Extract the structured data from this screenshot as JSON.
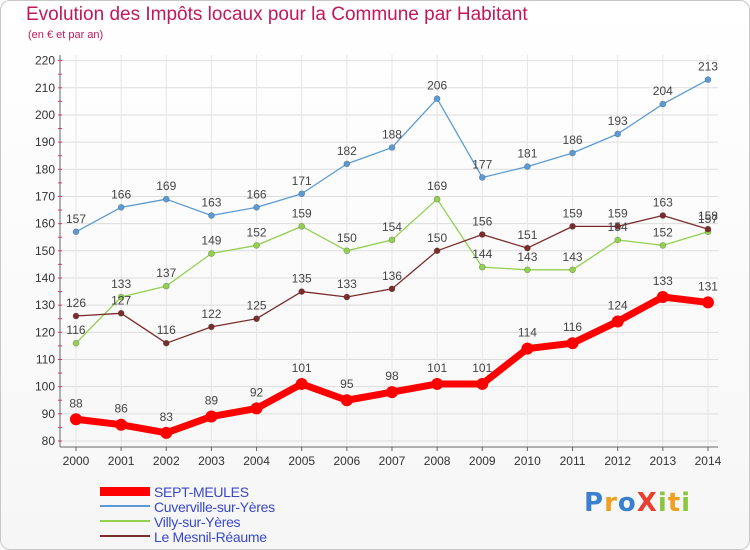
{
  "header": {
    "title": "Evolution des Impôts locaux pour la Commune par Habitant",
    "subtitle": "(en € et par an)"
  },
  "logo": {
    "text": "ProXiti",
    "letters": [
      {
        "ch": "P",
        "color": "#3b7fd0"
      },
      {
        "ch": "r",
        "color": "#f0a020"
      },
      {
        "ch": "o",
        "color": "#3b7fd0"
      },
      {
        "ch": "X",
        "color": "#e84030"
      },
      {
        "ch": "i",
        "color": "#8cc63f"
      },
      {
        "ch": "t",
        "color": "#f0a020"
      },
      {
        "ch": "i",
        "color": "#8cc63f"
      }
    ]
  },
  "chart_data": {
    "type": "line",
    "title": "Evolution des Impôts locaux pour la Commune par Habitant",
    "subtitle": "(en € et par an)",
    "xlabel": "",
    "ylabel": "",
    "x": [
      "2000",
      "2001",
      "2002",
      "2003",
      "2004",
      "2005",
      "2006",
      "2007",
      "2008",
      "2009",
      "2010",
      "2011",
      "2012",
      "2013",
      "2014"
    ],
    "ylim": [
      80,
      220
    ],
    "yticks": [
      80,
      90,
      100,
      110,
      120,
      130,
      140,
      150,
      160,
      170,
      180,
      190,
      200,
      210,
      220
    ],
    "grid": true,
    "legend_position": "bottom-left",
    "series": [
      {
        "name": "SEPT-MEULES",
        "color": "#ff0000",
        "emphasis": true,
        "values": [
          88,
          86,
          83,
          89,
          92,
          101,
          95,
          98,
          101,
          101,
          114,
          116,
          124,
          133,
          131
        ]
      },
      {
        "name": "Cuverville-sur-Yères",
        "color": "#5b9bd5",
        "values": [
          157,
          166,
          169,
          163,
          166,
          171,
          182,
          188,
          206,
          177,
          181,
          186,
          193,
          204,
          213
        ]
      },
      {
        "name": "Villy-sur-Yères",
        "color": "#92d050",
        "values": [
          116,
          133,
          137,
          149,
          152,
          159,
          150,
          154,
          169,
          144,
          143,
          143,
          154,
          152,
          157
        ]
      },
      {
        "name": "Le Mesnil-Réaume",
        "color": "#7b2c2c",
        "values": [
          126,
          127,
          116,
          122,
          125,
          135,
          133,
          136,
          150,
          156,
          151,
          159,
          159,
          163,
          158
        ]
      }
    ]
  }
}
